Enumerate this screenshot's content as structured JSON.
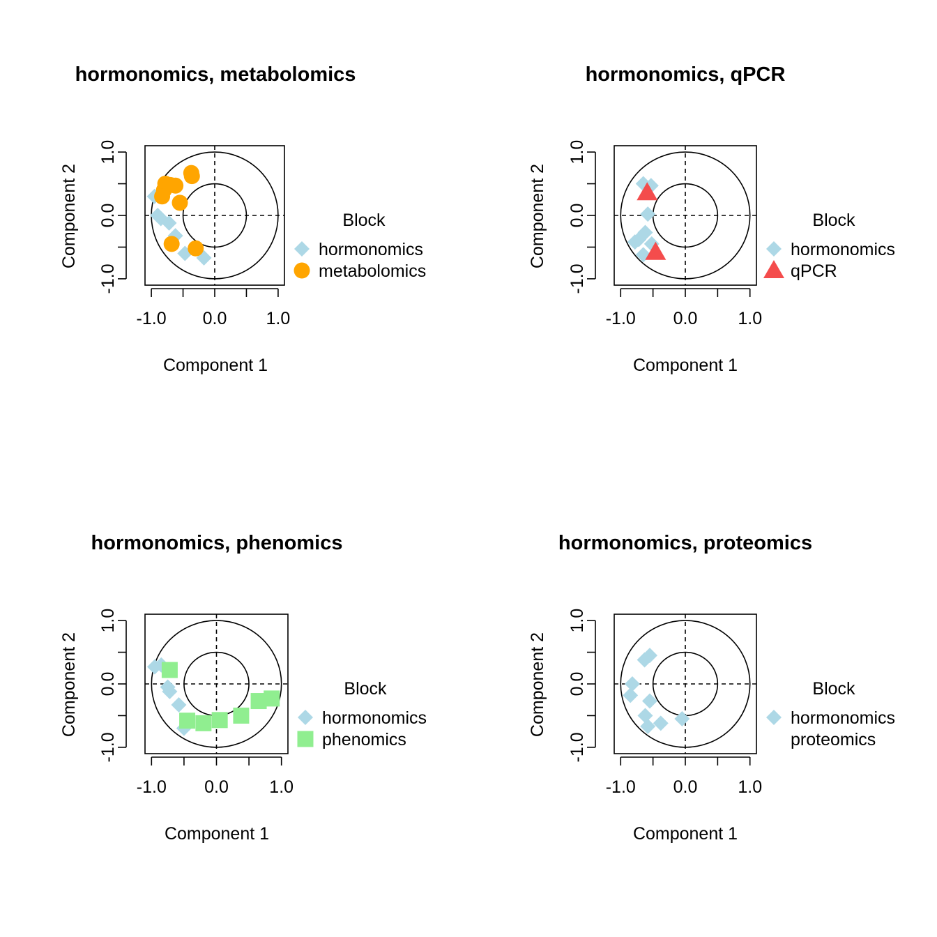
{
  "chart_data": [
    {
      "type": "scatter",
      "title": "hormonomics, metabolomics",
      "xlabel": "Component  1",
      "ylabel": "Component  2",
      "xlim": [
        -1.1,
        1.1
      ],
      "ylim": [
        -1.1,
        1.1
      ],
      "xticks": [
        -1.0,
        -0.5,
        0.0,
        0.5,
        1.0
      ],
      "yticks": [
        -1.0,
        -0.5,
        0.0,
        0.5,
        1.0
      ],
      "xticklabels": [
        "-1.0",
        "",
        "0.0",
        "",
        "1.0"
      ],
      "yticklabels": [
        "-1.0",
        "",
        "0.0",
        "",
        "1.0"
      ],
      "circles": [
        0.5,
        1.0
      ],
      "legend_title": "Block",
      "legend_position": "right",
      "series": [
        {
          "name": "hormonomics",
          "marker": "diamond",
          "color": "#ADD8E6",
          "points": [
            [
              -0.95,
              0.3
            ],
            [
              -0.9,
              0.0
            ],
            [
              -0.85,
              -0.05
            ],
            [
              -0.72,
              -0.12
            ],
            [
              -0.62,
              -0.32
            ],
            [
              -0.47,
              -0.6
            ],
            [
              -0.17,
              -0.67
            ]
          ]
        },
        {
          "name": "metabolomics",
          "marker": "circle",
          "color": "#FFA500",
          "points": [
            [
              -0.8,
              0.4
            ],
            [
              -0.78,
              0.5
            ],
            [
              -0.7,
              0.48
            ],
            [
              -0.62,
              0.47
            ],
            [
              -0.55,
              0.2
            ],
            [
              -0.83,
              0.3
            ],
            [
              -0.37,
              0.67
            ],
            [
              -0.36,
              0.62
            ],
            [
              -0.68,
              -0.45
            ],
            [
              -0.3,
              -0.52
            ]
          ]
        }
      ]
    },
    {
      "type": "scatter",
      "title": "hormonomics, qPCR",
      "xlabel": "Component  1",
      "ylabel": "Component  2",
      "xlim": [
        -1.1,
        1.1
      ],
      "ylim": [
        -1.1,
        1.1
      ],
      "xticks": [
        -1.0,
        -0.5,
        0.0,
        0.5,
        1.0
      ],
      "yticks": [
        -1.0,
        -0.5,
        0.0,
        0.5,
        1.0
      ],
      "xticklabels": [
        "-1.0",
        "",
        "0.0",
        "",
        "1.0"
      ],
      "yticklabels": [
        "-1.0",
        "",
        "0.0",
        "",
        "1.0"
      ],
      "circles": [
        0.5,
        1.0
      ],
      "legend_title": "Block",
      "legend_position": "right",
      "series": [
        {
          "name": "hormonomics",
          "marker": "diamond",
          "color": "#ADD8E6",
          "points": [
            [
              -0.65,
              0.5
            ],
            [
              -0.53,
              0.47
            ],
            [
              -0.58,
              0.02
            ],
            [
              -0.62,
              -0.27
            ],
            [
              -0.72,
              -0.38
            ],
            [
              -0.78,
              -0.42
            ],
            [
              -0.52,
              -0.45
            ],
            [
              -0.65,
              -0.62
            ]
          ]
        },
        {
          "name": "qPCR",
          "marker": "triangle",
          "color": "#F44C4C",
          "points": [
            [
              -0.59,
              0.36
            ],
            [
              -0.46,
              -0.58
            ]
          ]
        }
      ]
    },
    {
      "type": "scatter",
      "title": "hormonomics, phenomics",
      "xlabel": "Component  1",
      "ylabel": "Component  2",
      "xlim": [
        -1.1,
        1.1
      ],
      "ylim": [
        -1.1,
        1.1
      ],
      "xticks": [
        -1.0,
        -0.5,
        0.0,
        0.5,
        1.0
      ],
      "yticks": [
        -1.0,
        -0.5,
        0.0,
        0.5,
        1.0
      ],
      "xticklabels": [
        "-1.0",
        "",
        "0.0",
        "",
        "1.0"
      ],
      "yticklabels": [
        "-1.0",
        "",
        "0.0",
        "",
        "1.0"
      ],
      "circles": [
        0.5,
        1.0
      ],
      "legend_title": "Block",
      "legend_position": "right",
      "series": [
        {
          "name": "hormonomics",
          "marker": "diamond",
          "color": "#ADD8E6",
          "points": [
            [
              -0.95,
              0.27
            ],
            [
              -0.85,
              0.3
            ],
            [
              -0.75,
              -0.05
            ],
            [
              -0.72,
              -0.12
            ],
            [
              -0.58,
              -0.33
            ],
            [
              -0.5,
              -0.7
            ]
          ]
        },
        {
          "name": "phenomics",
          "marker": "square",
          "color": "#90EE90",
          "points": [
            [
              -0.72,
              0.22
            ],
            [
              -0.45,
              -0.58
            ],
            [
              -0.2,
              -0.62
            ],
            [
              0.05,
              -0.57
            ],
            [
              0.38,
              -0.5
            ],
            [
              0.65,
              -0.27
            ],
            [
              0.85,
              -0.23
            ]
          ]
        }
      ]
    },
    {
      "type": "scatter",
      "title": "hormonomics, proteomics",
      "xlabel": "Component  1",
      "ylabel": "Component  2",
      "xlim": [
        -1.1,
        1.1
      ],
      "ylim": [
        -1.1,
        1.1
      ],
      "xticks": [
        -1.0,
        -0.5,
        0.0,
        0.5,
        1.0
      ],
      "yticks": [
        -1.0,
        -0.5,
        0.0,
        0.5,
        1.0
      ],
      "xticklabels": [
        "-1.0",
        "",
        "0.0",
        "",
        "1.0"
      ],
      "yticklabels": [
        "-1.0",
        "",
        "0.0",
        "",
        "1.0"
      ],
      "circles": [
        0.5,
        1.0
      ],
      "legend_title": "Block",
      "legend_position": "right",
      "series": [
        {
          "name": "hormonomics",
          "marker": "diamond",
          "color": "#ADD8E6",
          "points": [
            [
              -0.63,
              0.38
            ],
            [
              -0.55,
              0.45
            ],
            [
              -0.82,
              0.0
            ],
            [
              -0.85,
              -0.18
            ],
            [
              -0.55,
              -0.27
            ],
            [
              -0.62,
              -0.5
            ],
            [
              -0.58,
              -0.67
            ],
            [
              -0.38,
              -0.62
            ],
            [
              -0.05,
              -0.55
            ]
          ]
        },
        {
          "name": "proteomics",
          "marker": "none",
          "color": "#FFC0CB",
          "points": []
        }
      ]
    }
  ]
}
